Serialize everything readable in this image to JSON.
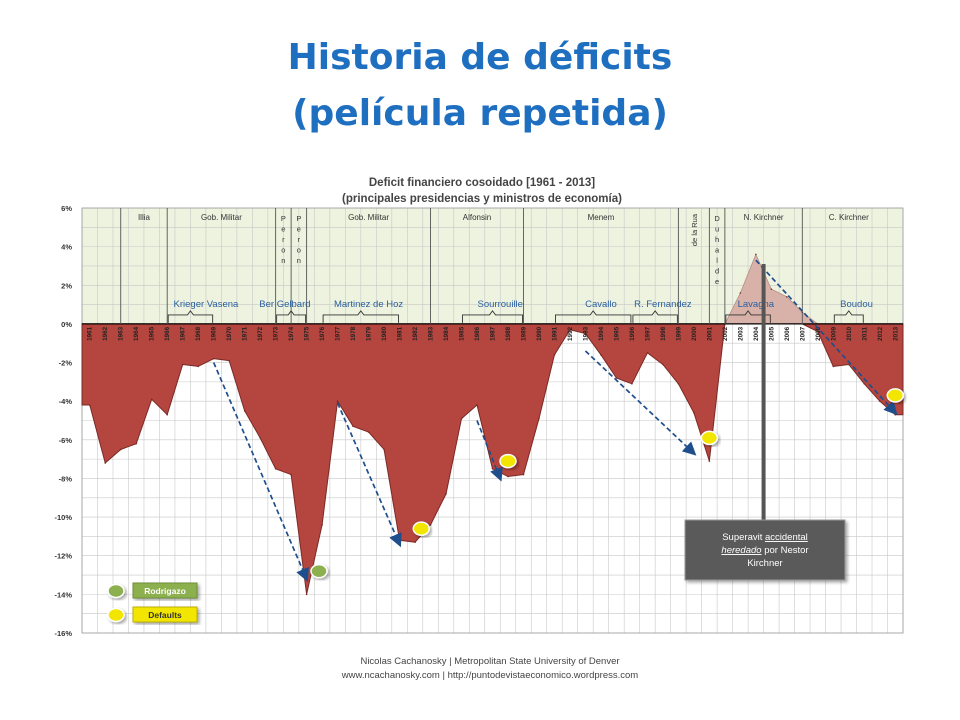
{
  "slide": {
    "title_line1": "Historia de déficits",
    "title_line2": "(película repetida)"
  },
  "chart_data": {
    "type": "area",
    "title": "Deficit financiero cosoidado [1961 - 2013]",
    "subtitle": "(principales presidencias y ministros de economía)",
    "x": [
      1961,
      1962,
      1963,
      1964,
      1965,
      1966,
      1967,
      1968,
      1969,
      1970,
      1971,
      1972,
      1973,
      1974,
      1975,
      1976,
      1977,
      1978,
      1979,
      1980,
      1981,
      1982,
      1983,
      1984,
      1985,
      1986,
      1987,
      1988,
      1989,
      1990,
      1991,
      1992,
      1993,
      1994,
      1995,
      1996,
      1997,
      1998,
      1999,
      2000,
      2001,
      2002,
      2003,
      2004,
      2005,
      2006,
      2007,
      2008,
      2009,
      2010,
      2011,
      2012,
      2013
    ],
    "values": [
      -4.2,
      -7.2,
      -6.5,
      -6.2,
      -3.9,
      -4.7,
      -2.1,
      -2.2,
      -1.8,
      -1.9,
      -4.5,
      -5.9,
      -7.5,
      -7.8,
      -14.0,
      -10.4,
      -4.0,
      -5.3,
      -5.6,
      -6.5,
      -11.2,
      -11.3,
      -10.4,
      -8.8,
      -4.9,
      -4.2,
      -7.5,
      -7.9,
      -7.8,
      -4.9,
      -1.6,
      -0.3,
      -0.5,
      -1.6,
      -2.8,
      -3.1,
      -1.5,
      -2.1,
      -3.1,
      -4.6,
      -7.1,
      0.0,
      1.6,
      3.6,
      1.8,
      1.4,
      0.6,
      -0.4,
      -2.2,
      -2.1,
      -3.1,
      -4.0,
      -4.7
    ],
    "y_ticks": [
      "6%",
      "4%",
      "2%",
      "0%",
      "-2%",
      "-4%",
      "-6%",
      "-8%",
      "-10%",
      "-12%",
      "-14%",
      "-16%"
    ],
    "ylim": [
      -16,
      6
    ],
    "grid": true,
    "colors": {
      "deficit": "#b5453f",
      "surplus": "#d8b2a8",
      "top_band": "#edf3df",
      "arrow": "#1f4e8c",
      "rodrigazo": "#8db050",
      "defaults": "#f2e600",
      "callout": "#5a5a5a"
    },
    "presidencies": [
      {
        "label": "Illia",
        "start": 1963.5,
        "end": 1966.5
      },
      {
        "label": "Gob. Militar",
        "start": 1966.5,
        "end": 1973.5
      },
      {
        "label": "P e r o n",
        "start": 1973.5,
        "end": 1974.5,
        "vertical": true
      },
      {
        "label": "P e r o n",
        "start": 1974.5,
        "end": 1975.5,
        "vertical": true
      },
      {
        "label": "Gob. Militar",
        "start": 1975.5,
        "end": 1983.5
      },
      {
        "label": "Alfonsin",
        "start": 1983.5,
        "end": 1989.5
      },
      {
        "label": "Menem",
        "start": 1989.5,
        "end": 1999.5
      },
      {
        "label": "de la Rua",
        "start": 1999.5,
        "end": 2001.5,
        "rotated": true
      },
      {
        "label": "D u h a l d e",
        "start": 2001.5,
        "end": 2002.5,
        "vertical": true
      },
      {
        "label": "N. Kirchner",
        "start": 2002.5,
        "end": 2007.5
      },
      {
        "label": "C. Kirchner",
        "start": 2007.5,
        "end": 2013.5
      }
    ],
    "ministers": [
      {
        "label": "Krieger Vasena",
        "start": 1966.5,
        "end": 1969.5,
        "label_x": 1968.5
      },
      {
        "label": "Ber Gelbard",
        "start": 1973.5,
        "end": 1975.5,
        "label_x": 1973.6
      },
      {
        "label": "Martinez de Hoz",
        "start": 1976.5,
        "end": 1981.5,
        "label_x": 1979.0
      },
      {
        "label": "Sourrouille",
        "start": 1985.5,
        "end": 1989.5,
        "label_x": 1987.5
      },
      {
        "label": "Cavallo",
        "start": 1991.5,
        "end": 1996.5,
        "label_x": 1994.0
      },
      {
        "label": "R. Fernandez",
        "start": 1996.5,
        "end": 1999.5,
        "label_x": 1998.0
      },
      {
        "label": "Lavagna",
        "start": 2002.5,
        "end": 2005.5,
        "label_x": 2004.0
      },
      {
        "label": "Boudou",
        "start": 2009.5,
        "end": 2011.5,
        "label_x": 2010.5
      }
    ],
    "trend_arrows": [
      {
        "from": [
          1969.0,
          -2.0
        ],
        "to": [
          1975.0,
          -13.2
        ]
      },
      {
        "from": [
          1977.0,
          -4.1
        ],
        "to": [
          1981.0,
          -11.4
        ]
      },
      {
        "from": [
          1986.0,
          -5.0
        ],
        "to": [
          1987.5,
          -8.0
        ]
      },
      {
        "from": [
          1993.0,
          -1.4
        ],
        "to": [
          2000.0,
          -6.7
        ]
      },
      {
        "from": [
          2004.0,
          3.3
        ],
        "to": [
          2013.0,
          -4.6
        ]
      }
    ],
    "rodrigazo_points": [
      [
        1975.8,
        -12.8
      ]
    ],
    "default_points": [
      [
        1982.4,
        -10.6
      ],
      [
        1988.0,
        -7.1
      ],
      [
        2001.0,
        -5.9
      ],
      [
        2013.0,
        -3.7
      ]
    ],
    "legend": {
      "rodrigazo": "Rodrigazo",
      "defaults": "Defaults"
    },
    "callout": {
      "parts": [
        {
          "text": "Superavit ",
          "style": "normal"
        },
        {
          "text": "accidental",
          "style": "underline"
        },
        {
          "text": " ",
          "style": "normal"
        },
        {
          "text": "heredado",
          "style": "italic-underline"
        },
        {
          "text": " por Nestor",
          "style": "normal"
        },
        {
          "text": "Kirchner",
          "style": "normal"
        }
      ]
    },
    "credit_line1": "Nicolas Cachanosky | Metropolitan State University of Denver",
    "credit_line2": "www.ncachanosky.com  |  http://puntodevistaeconomico.wordpress.com"
  }
}
